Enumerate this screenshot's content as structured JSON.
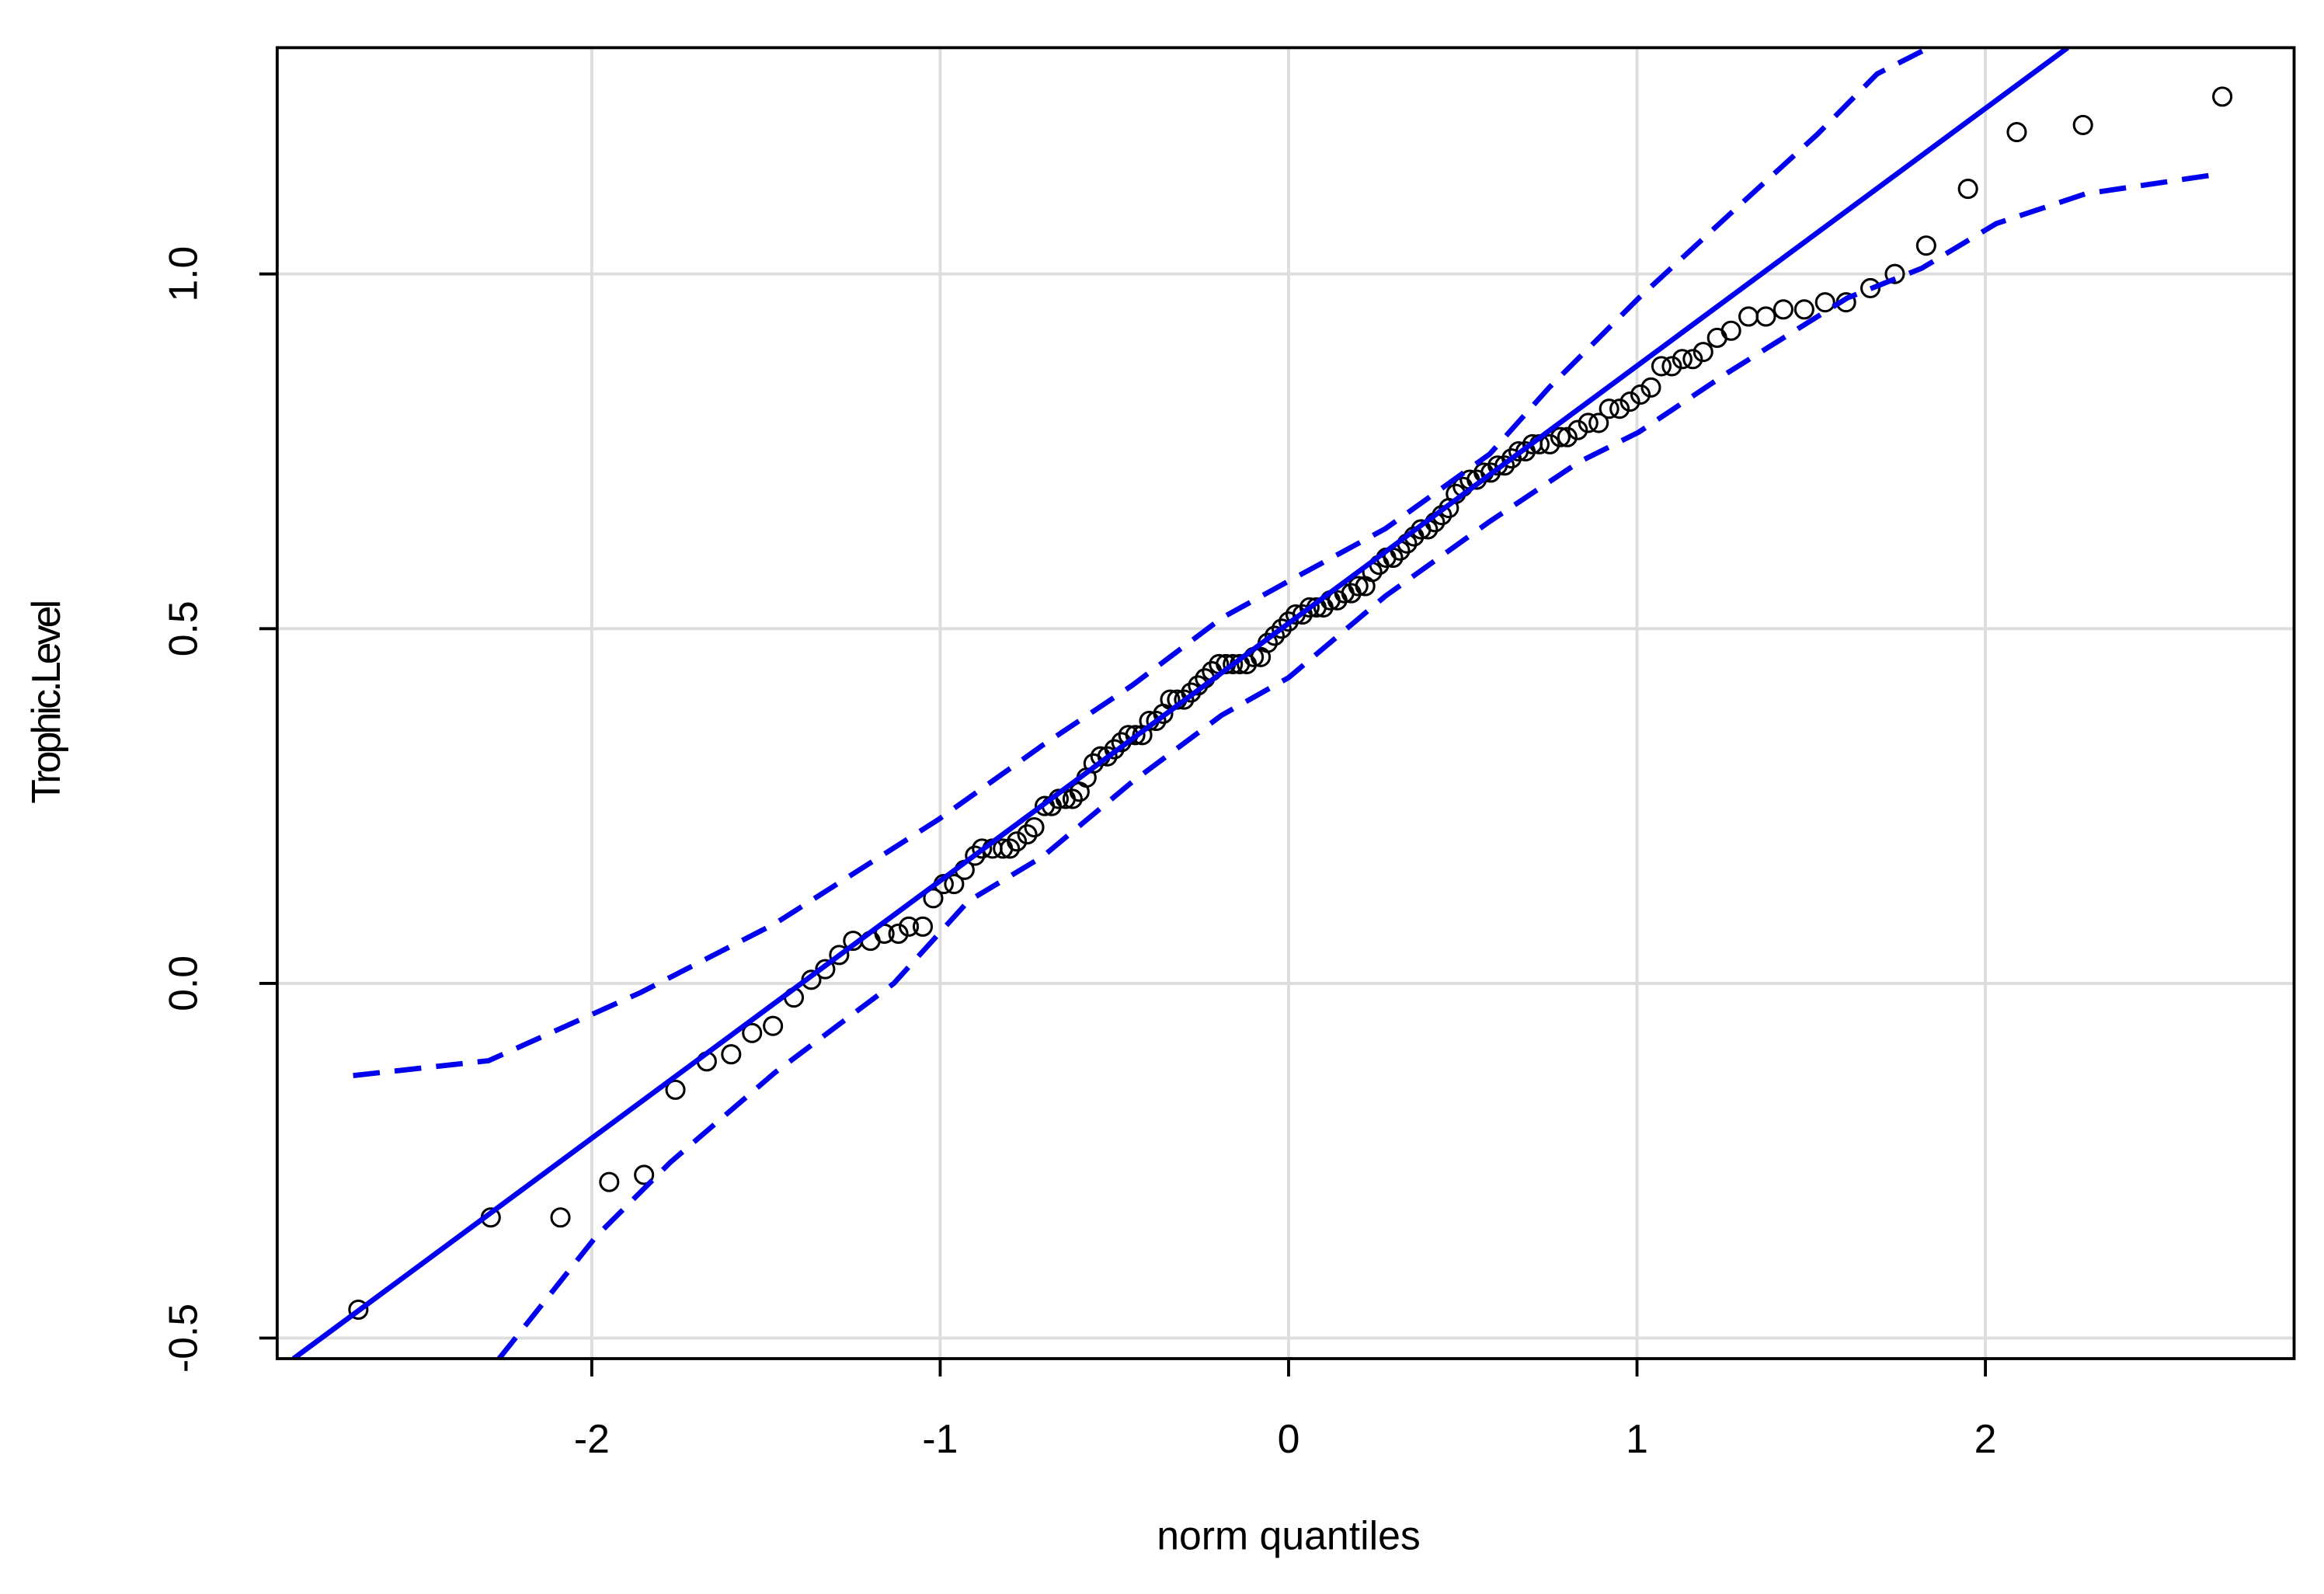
{
  "chart_data": {
    "type": "scatter",
    "x_label": "norm quantiles",
    "y_label": "Trophic.Level",
    "xlim": [
      -2.903,
      2.886
    ],
    "ylim": [
      -0.529,
      1.319
    ],
    "xticks": [
      -2,
      -1,
      0,
      1,
      2
    ],
    "yticks": [
      -0.5,
      {
        "value": 0,
        "label": "0.0"
      },
      0.5,
      {
        "value": 1,
        "label": "1.0"
      }
    ],
    "grid": true,
    "series": [
      {
        "style": "points",
        "color": "#000000",
        "x": [
          -2.67,
          -2.29,
          -2.09,
          -1.95,
          -1.85,
          -1.76,
          -1.67,
          -1.6,
          -1.54,
          -1.48,
          -1.42,
          -1.37,
          -1.33,
          -1.29,
          -1.25,
          -1.2,
          -1.16,
          -1.12,
          -1.09,
          -1.05,
          -1.02,
          -0.99,
          -0.96,
          -0.93,
          -0.9,
          -0.88,
          -0.85,
          -0.82,
          -0.8,
          -0.78,
          -0.75,
          -0.73,
          -0.7,
          -0.68,
          -0.66,
          -0.64,
          -0.62,
          -0.6,
          -0.58,
          -0.56,
          -0.54,
          -0.52,
          -0.5,
          -0.48,
          -0.46,
          -0.44,
          -0.42,
          -0.4,
          -0.38,
          -0.36,
          -0.34,
          -0.32,
          -0.3,
          -0.28,
          -0.26,
          -0.24,
          -0.22,
          -0.2,
          -0.18,
          -0.16,
          -0.14,
          -0.12,
          -0.1,
          -0.08,
          -0.06,
          -0.04,
          -0.02,
          0,
          0.02,
          0.04,
          0.06,
          0.08,
          0.1,
          0.12,
          0.14,
          0.16,
          0.18,
          0.2,
          0.22,
          0.24,
          0.26,
          0.28,
          0.3,
          0.32,
          0.34,
          0.36,
          0.38,
          0.4,
          0.42,
          0.44,
          0.46,
          0.48,
          0.5,
          0.52,
          0.54,
          0.56,
          0.58,
          0.6,
          0.62,
          0.64,
          0.66,
          0.68,
          0.7,
          0.72,
          0.75,
          0.78,
          0.8,
          0.83,
          0.86,
          0.89,
          0.92,
          0.95,
          0.98,
          1.01,
          1.04,
          1.07,
          1.1,
          1.13,
          1.16,
          1.19,
          1.23,
          1.27,
          1.32,
          1.37,
          1.42,
          1.48,
          1.54,
          1.6,
          1.67,
          1.74,
          1.83,
          1.95,
          2.09,
          2.28,
          2.68
        ],
        "values": [
          -0.46,
          -0.33,
          -0.33,
          -0.28,
          -0.27,
          -0.15,
          -0.11,
          -0.1,
          -0.07,
          -0.06,
          -0.02,
          0.005,
          0.02,
          0.04,
          0.06,
          0.06,
          0.07,
          0.07,
          0.08,
          0.08,
          0.12,
          0.14,
          0.14,
          0.16,
          0.18,
          0.19,
          0.19,
          0.19,
          0.19,
          0.2,
          0.21,
          0.22,
          0.25,
          0.25,
          0.26,
          0.26,
          0.26,
          0.27,
          0.29,
          0.31,
          0.32,
          0.32,
          0.33,
          0.34,
          0.35,
          0.35,
          0.35,
          0.37,
          0.37,
          0.38,
          0.4,
          0.4,
          0.4,
          0.41,
          0.42,
          0.43,
          0.44,
          0.45,
          0.45,
          0.45,
          0.45,
          0.45,
          0.46,
          0.46,
          0.48,
          0.49,
          0.5,
          0.51,
          0.52,
          0.52,
          0.53,
          0.53,
          0.53,
          0.54,
          0.54,
          0.55,
          0.55,
          0.56,
          0.56,
          0.58,
          0.59,
          0.6,
          0.6,
          0.61,
          0.62,
          0.63,
          0.64,
          0.64,
          0.65,
          0.66,
          0.67,
          0.69,
          0.7,
          0.71,
          0.71,
          0.72,
          0.72,
          0.73,
          0.73,
          0.74,
          0.75,
          0.75,
          0.76,
          0.76,
          0.76,
          0.77,
          0.77,
          0.78,
          0.79,
          0.79,
          0.81,
          0.81,
          0.82,
          0.83,
          0.84,
          0.87,
          0.87,
          0.88,
          0.88,
          0.89,
          0.91,
          0.92,
          0.94,
          0.94,
          0.95,
          0.95,
          0.96,
          0.96,
          0.98,
          1.0,
          1.04,
          1.12,
          1.2,
          1.21,
          1.25
        ]
      },
      {
        "style": "solid",
        "color": "#0000ee",
        "x": [
          -2.856,
          2.236
        ],
        "values": [
          -0.529,
          1.319
        ]
      },
      {
        "style": "dashed",
        "color": "#0000ee",
        "x": [
          -2.685,
          -2.296,
          -1.86,
          -1.475,
          -1.005,
          -0.705,
          -0.449,
          -0.192,
          0,
          0.278,
          0.577,
          0.748,
          1.005,
          1.261,
          1.518,
          1.689,
          1.838
        ],
        "values": [
          -0.13,
          -0.109,
          -0.013,
          0.084,
          0.231,
          0.336,
          0.42,
          0.515,
          0.567,
          0.641,
          0.746,
          0.84,
          0.966,
          1.082,
          1.197,
          1.282,
          1.319
        ]
      },
      {
        "style": "dashed",
        "color": "#0000ee",
        "x": [
          -2.266,
          -1.988,
          -1.774,
          -1.475,
          -1.133,
          -0.919,
          -0.705,
          -0.449,
          -0.192,
          0,
          0.278,
          0.577,
          0.834,
          1.005,
          1.261,
          1.603,
          1.817,
          2.031,
          2.287,
          2.672
        ],
        "values": [
          -0.529,
          -0.357,
          -0.252,
          -0.126,
          0,
          0.116,
          0.179,
          0.284,
          0.378,
          0.431,
          0.546,
          0.651,
          0.735,
          0.777,
          0.861,
          0.966,
          1.008,
          1.071,
          1.113,
          1.141
        ]
      }
    ]
  }
}
